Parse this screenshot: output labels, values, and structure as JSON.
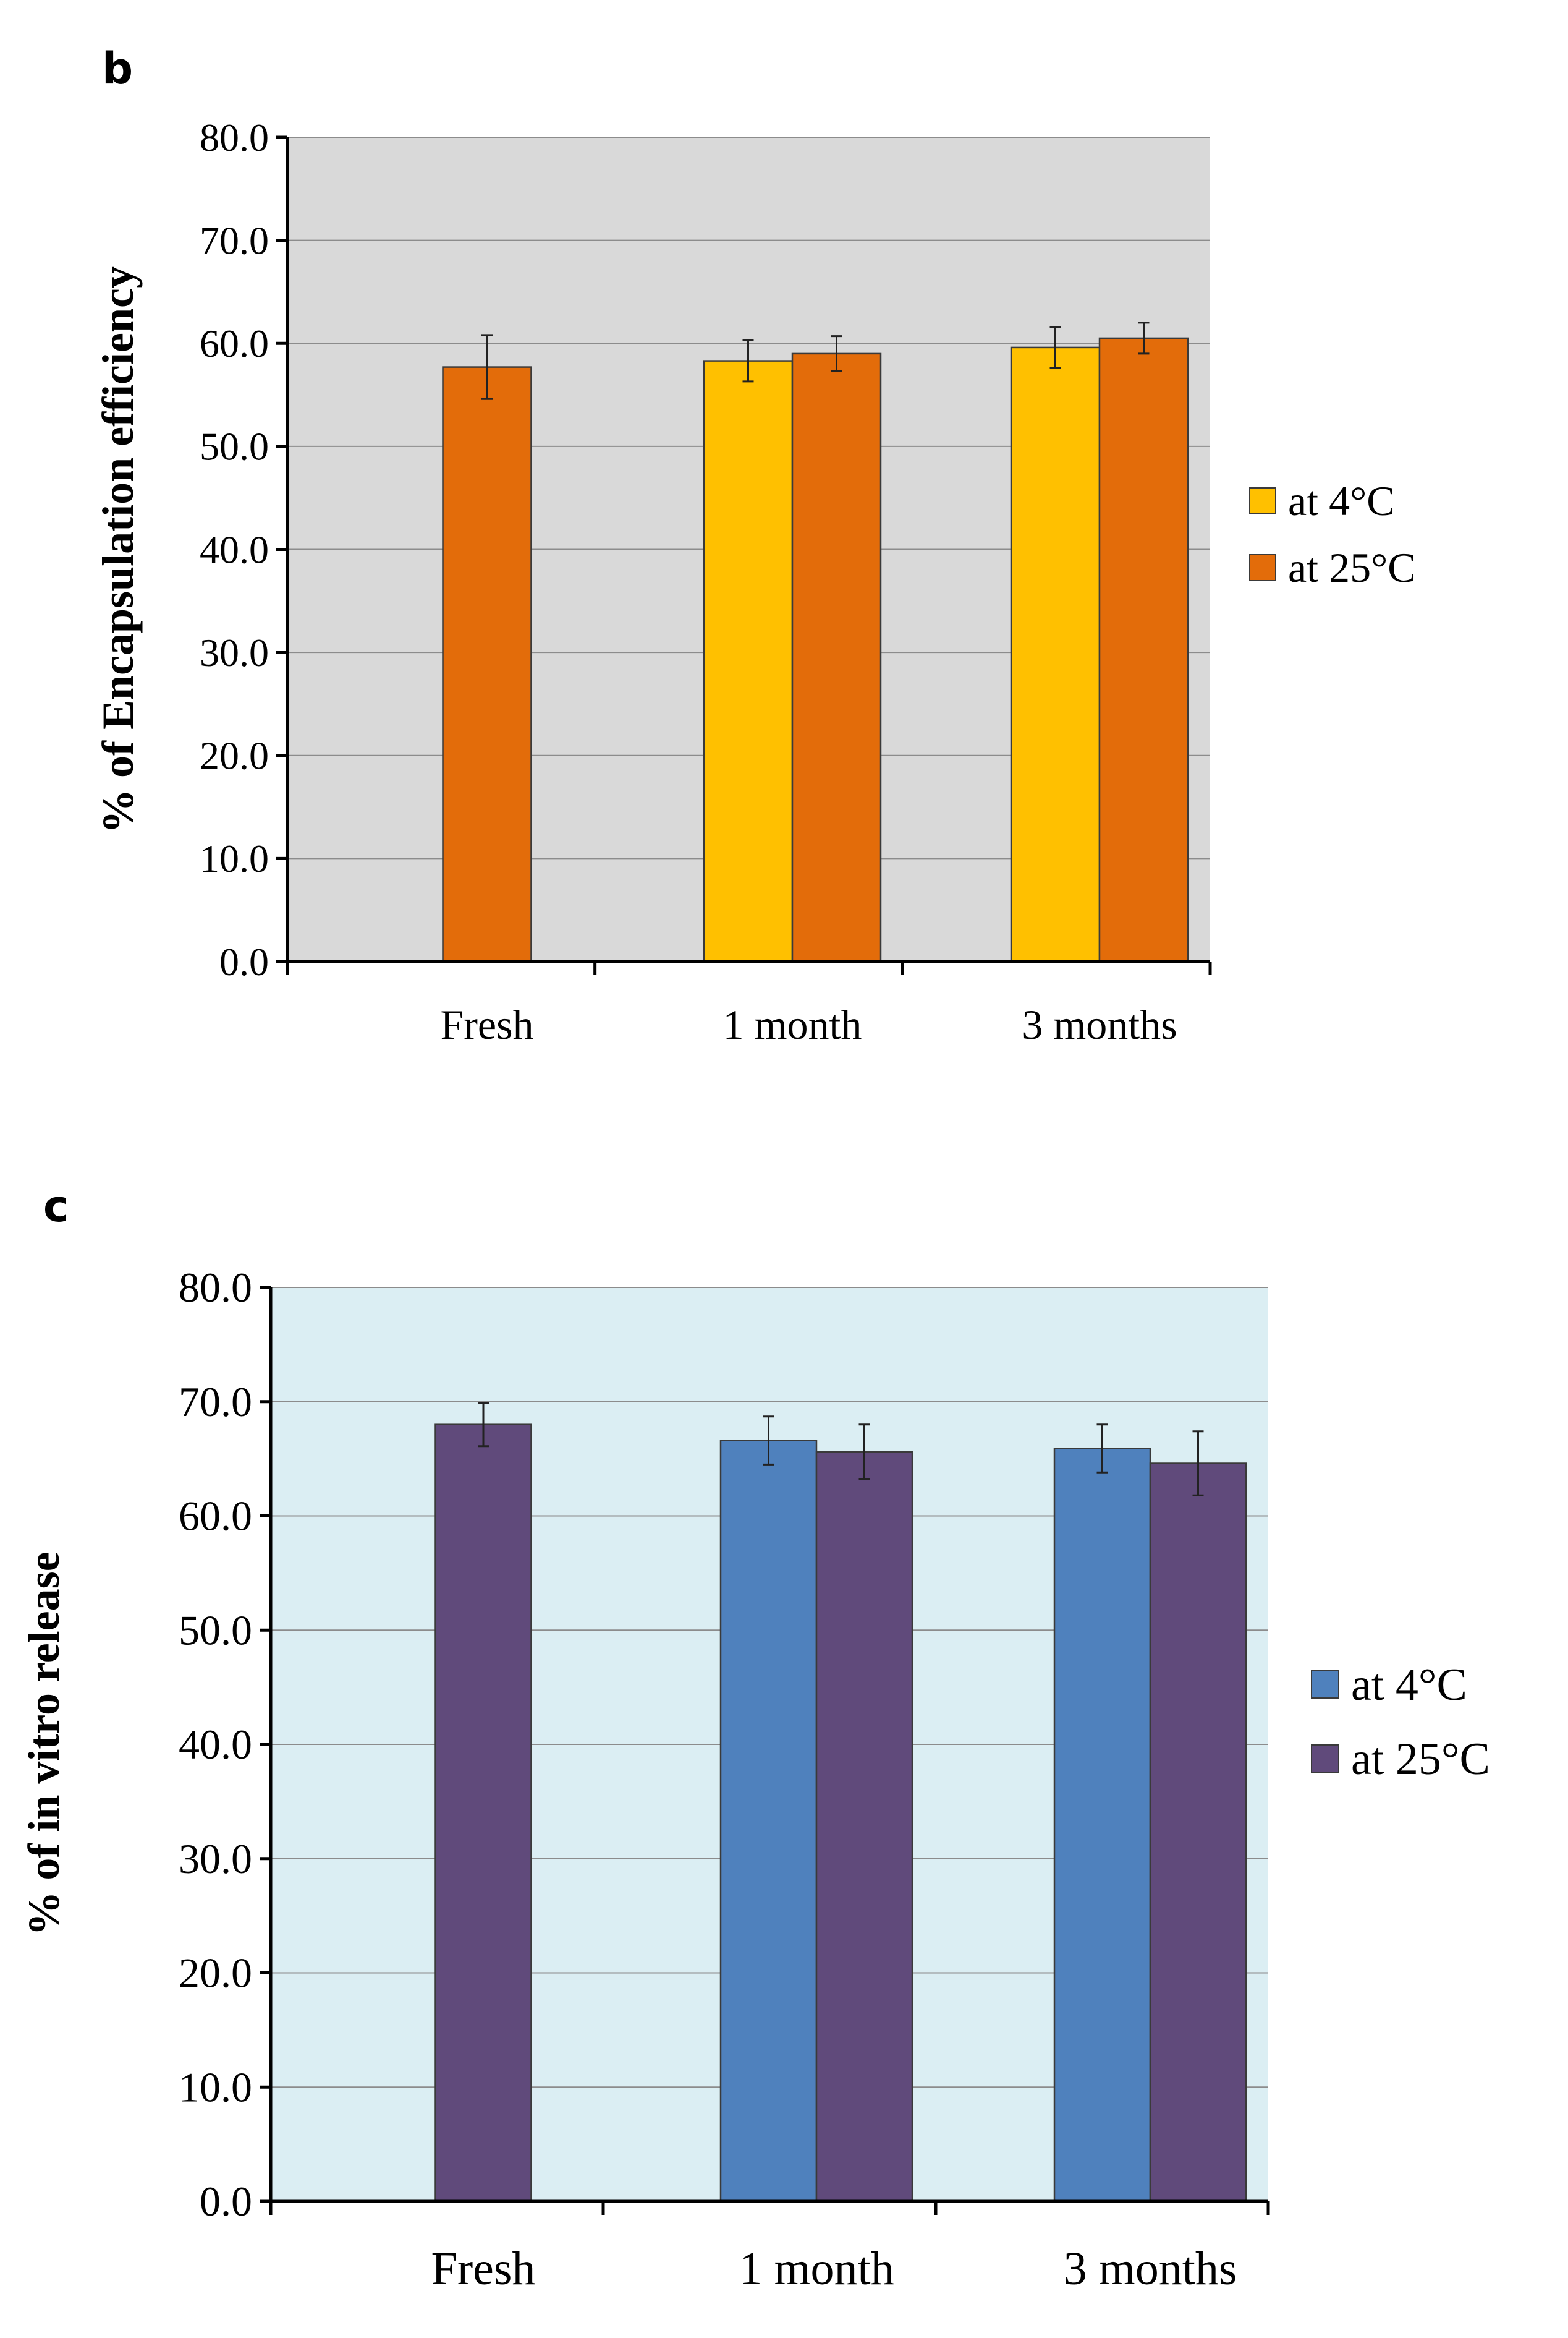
{
  "chart_data": [
    {
      "panel": "b",
      "type": "bar",
      "title": "",
      "xlabel": "",
      "ylabel": "% of Encapsulation efficiency",
      "categories": [
        "Fresh",
        "1 month",
        "3 months"
      ],
      "ylim": [
        0,
        80
      ],
      "yticks": [
        "0.0",
        "10.0",
        "20.0",
        "30.0",
        "40.0",
        "50.0",
        "60.0",
        "70.0",
        "80.0"
      ],
      "grid": true,
      "legend_position": "right",
      "series": [
        {
          "name": "at 4°C",
          "color": "#ffc000",
          "values": [
            null,
            58.3,
            59.6
          ],
          "errors": [
            null,
            2.0,
            2.0
          ]
        },
        {
          "name": "at 25°C",
          "color": "#e36c0a",
          "values": [
            57.7,
            59.0,
            60.5
          ],
          "errors": [
            3.1,
            1.7,
            1.5
          ]
        }
      ],
      "plot_bg": "#d9d9d9"
    },
    {
      "panel": "c",
      "type": "bar",
      "title": "",
      "xlabel": "",
      "ylabel": "% of in vitro release",
      "categories": [
        "Fresh",
        "1 month",
        "3 months"
      ],
      "ylim": [
        0,
        80
      ],
      "yticks": [
        "0.0",
        "10.0",
        "20.0",
        "30.0",
        "40.0",
        "50.0",
        "60.0",
        "70.0",
        "80.0"
      ],
      "grid": true,
      "legend_position": "right",
      "series": [
        {
          "name": "at 4°C",
          "color": "#4f81bd",
          "values": [
            null,
            66.6,
            65.9
          ],
          "errors": [
            null,
            2.1,
            2.1
          ]
        },
        {
          "name": "at 25°C",
          "color": "#604a7b",
          "values": [
            68.0,
            65.6,
            64.6
          ],
          "errors": [
            1.9,
            2.4,
            2.8
          ]
        }
      ],
      "plot_bg": "#dbeef3"
    }
  ]
}
